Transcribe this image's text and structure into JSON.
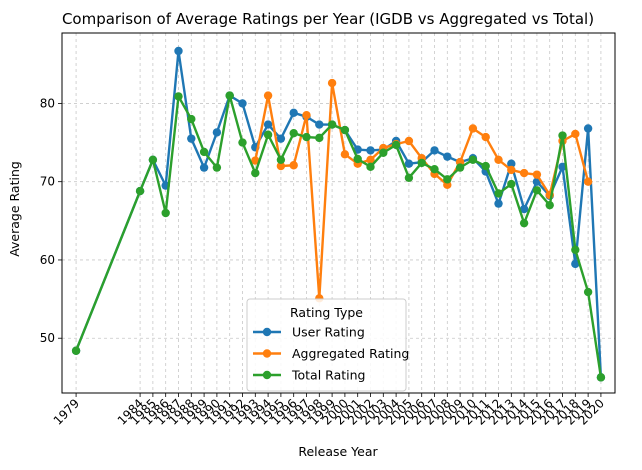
{
  "chart_data": {
    "type": "line",
    "title": "Comparison of Average Ratings per Year (IGDB vs Aggregated vs Total)",
    "xlabel": "Release Year",
    "ylabel": "Average Rating",
    "xlim": [
      1977.9,
      2021.1
    ],
    "ylim": [
      43.0,
      89.0
    ],
    "grid": true,
    "legend_title": "Rating Type",
    "legend_position": "lower-center",
    "x_ticks": [
      1979,
      1984,
      1985,
      1986,
      1987,
      1988,
      1989,
      1990,
      1991,
      1992,
      1993,
      1994,
      1995,
      1996,
      1997,
      1998,
      1999,
      2000,
      2001,
      2002,
      2003,
      2004,
      2005,
      2006,
      2007,
      2008,
      2009,
      2010,
      2011,
      2012,
      2013,
      2014,
      2015,
      2016,
      2017,
      2018,
      2019,
      2020
    ],
    "y_ticks": [
      50,
      60,
      70,
      80
    ],
    "series": [
      {
        "name": "User Rating",
        "color": "#1f77b4",
        "points": [
          [
            1979,
            48.4
          ],
          [
            1984,
            68.8
          ],
          [
            1985,
            72.8
          ],
          [
            1986,
            69.5
          ],
          [
            1987,
            86.7
          ],
          [
            1988,
            75.5
          ],
          [
            1989,
            71.8
          ],
          [
            1990,
            76.3
          ],
          [
            1991,
            81.0
          ],
          [
            1992,
            80.0
          ],
          [
            1993,
            74.4
          ],
          [
            1994,
            77.3
          ],
          [
            1995,
            75.5
          ],
          [
            1996,
            78.8
          ],
          [
            1997,
            78.3
          ],
          [
            1998,
            77.3
          ],
          [
            1999,
            77.3
          ],
          [
            2000,
            76.6
          ],
          [
            2001,
            74.1
          ],
          [
            2002,
            74.0
          ],
          [
            2003,
            74.1
          ],
          [
            2004,
            75.2
          ],
          [
            2005,
            72.3
          ],
          [
            2006,
            72.5
          ],
          [
            2007,
            74.0
          ],
          [
            2008,
            73.2
          ],
          [
            2009,
            72.5
          ],
          [
            2010,
            73.0
          ],
          [
            2011,
            71.3
          ],
          [
            2012,
            67.2
          ],
          [
            2013,
            72.3
          ],
          [
            2014,
            66.5
          ],
          [
            2015,
            70.0
          ],
          [
            2016,
            68.2
          ],
          [
            2017,
            71.9
          ],
          [
            2018,
            59.5
          ],
          [
            2019,
            76.8
          ],
          [
            2020,
            45.0
          ]
        ]
      },
      {
        "name": "Aggregated Rating",
        "color": "#ff7f0e",
        "points": [
          [
            1993,
            72.7
          ],
          [
            1994,
            81.0
          ],
          [
            1995,
            72.0
          ],
          [
            1996,
            72.1
          ],
          [
            1997,
            78.5
          ],
          [
            1998,
            55.1
          ],
          [
            1999,
            82.6
          ],
          [
            2000,
            73.5
          ],
          [
            2001,
            72.3
          ],
          [
            2002,
            72.8
          ],
          [
            2003,
            74.3
          ],
          [
            2004,
            74.8
          ],
          [
            2005,
            75.2
          ],
          [
            2006,
            73.0
          ],
          [
            2007,
            71.0
          ],
          [
            2008,
            69.6
          ],
          [
            2009,
            72.5
          ],
          [
            2010,
            76.8
          ],
          [
            2011,
            75.7
          ],
          [
            2012,
            72.8
          ],
          [
            2013,
            71.5
          ],
          [
            2014,
            71.1
          ],
          [
            2015,
            70.9
          ],
          [
            2016,
            68.3
          ],
          [
            2017,
            75.2
          ],
          [
            2018,
            76.1
          ],
          [
            2019,
            70.0
          ]
        ]
      },
      {
        "name": "Total Rating",
        "color": "#2ca02c",
        "points": [
          [
            1979,
            48.4
          ],
          [
            1984,
            68.8
          ],
          [
            1985,
            72.8
          ],
          [
            1986,
            66.0
          ],
          [
            1987,
            80.9
          ],
          [
            1988,
            78.0
          ],
          [
            1989,
            73.8
          ],
          [
            1990,
            71.8
          ],
          [
            1991,
            81.0
          ],
          [
            1992,
            75.0
          ],
          [
            1993,
            71.1
          ],
          [
            1994,
            76.0
          ],
          [
            1995,
            72.8
          ],
          [
            1996,
            76.2
          ],
          [
            1997,
            75.7
          ],
          [
            1998,
            75.6
          ],
          [
            1999,
            77.3
          ],
          [
            2000,
            76.6
          ],
          [
            2001,
            72.9
          ],
          [
            2002,
            71.9
          ],
          [
            2003,
            73.7
          ],
          [
            2004,
            74.7
          ],
          [
            2005,
            70.5
          ],
          [
            2006,
            72.4
          ],
          [
            2007,
            71.6
          ],
          [
            2008,
            70.3
          ],
          [
            2009,
            71.8
          ],
          [
            2010,
            72.8
          ],
          [
            2011,
            72.0
          ],
          [
            2012,
            68.5
          ],
          [
            2013,
            69.7
          ],
          [
            2014,
            64.7
          ],
          [
            2015,
            68.9
          ],
          [
            2016,
            67.0
          ],
          [
            2017,
            75.9
          ],
          [
            2018,
            61.3
          ],
          [
            2019,
            55.9
          ],
          [
            2020,
            45.0
          ]
        ]
      }
    ]
  }
}
